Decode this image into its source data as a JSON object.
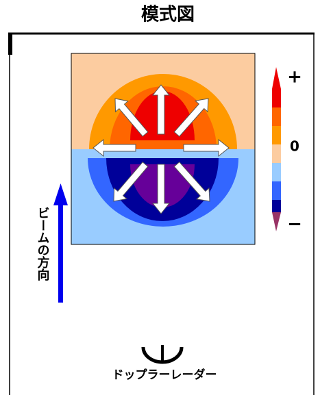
{
  "title": "模式図",
  "colorbar": {
    "plus": "+",
    "zero": "0",
    "minus": "−"
  },
  "beam_label": "ビームの方向",
  "radar_label": "ドップラーレーダー"
}
